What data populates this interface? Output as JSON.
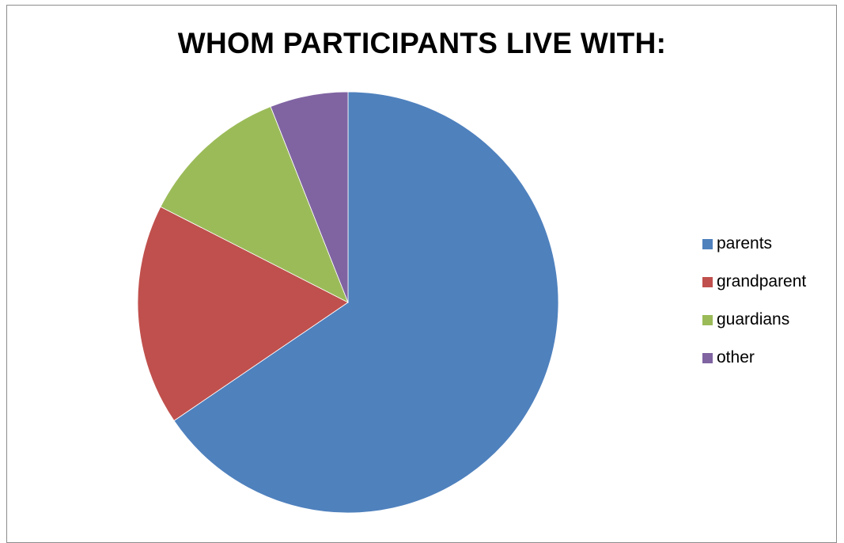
{
  "chart_data": {
    "type": "pie",
    "title": "WHOM PARTICIPANTS LIVE WITH:",
    "start_angle_deg": 0,
    "direction": "clockwise",
    "legend_position": "right",
    "slices": [
      {
        "label": "parents",
        "value": 65.5,
        "color": "#4F81BD"
      },
      {
        "label": "grandparent",
        "value": 17.0,
        "color": "#C0504D"
      },
      {
        "label": "guardians",
        "value": 11.5,
        "color": "#9BBB59"
      },
      {
        "label": "other",
        "value": 6.0,
        "color": "#8064A2"
      }
    ]
  }
}
